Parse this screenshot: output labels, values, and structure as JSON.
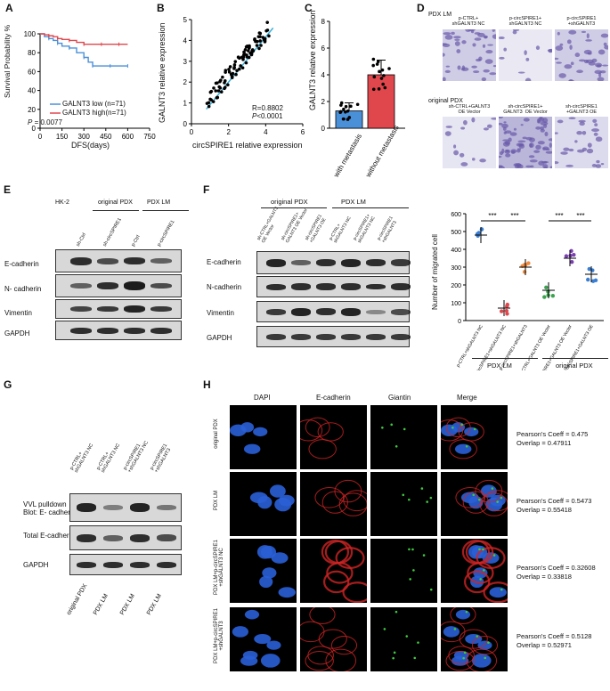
{
  "panels": {
    "A": "A",
    "B": "B",
    "C": "C",
    "D": "D",
    "E": "E",
    "F": "F",
    "G": "G",
    "H": "H"
  },
  "A": {
    "ylabel": "Survival Probability %",
    "xlabel": "DFS(days)",
    "yticks": [
      "0",
      "20",
      "40",
      "60",
      "80",
      "100"
    ],
    "xticks": [
      "0",
      "150",
      "300",
      "450",
      "600",
      "750"
    ],
    "legend": [
      "GALNT3 low (n=71)",
      "GALNT3 high(n=71)"
    ],
    "pvalue_label": "P",
    "pvalue": " = 0.0077",
    "colors": {
      "low": "#4a90d9",
      "high": "#e0474c"
    }
  },
  "B": {
    "ylabel": "GALNT3 relative expression",
    "xlabel": "circSPIRE1 relative expression",
    "yticks": [
      "0",
      "1",
      "2",
      "3",
      "4",
      "5"
    ],
    "xticks": [
      "0",
      "2",
      "4",
      "6"
    ],
    "r_text": "R=0.8802",
    "p_label": "P",
    "p_text": "<0.0001"
  },
  "C": {
    "ylabel": "GALNT3 relative expression",
    "yticks": [
      "0",
      "2",
      "4",
      "6",
      "8"
    ],
    "categories": [
      "with metastasis",
      "without metastasis"
    ],
    "colors": {
      "with": "#4a90d9",
      "without": "#e0474c"
    }
  },
  "D": {
    "section1": "PDX LM",
    "row1": [
      "p-CTRL+\nshGALNT3 NC",
      "p-circSPIRE1+\nshGALNT3 NC",
      "p-circSPIRE1\n+shGALNT3"
    ],
    "section2": "original PDX",
    "row2": [
      "sh-CTRL+GALNT3\nOE Vector",
      "sh-circSPIRE1+\nGALNT3  OE Vector",
      "sh-circSPIRE1\n+GALNT3 OE"
    ]
  },
  "E": {
    "groups": [
      "HK-2",
      "original PDX",
      "PDX LM"
    ],
    "lanes": [
      "sh-Ctrl",
      "sh-circSPIRE1",
      "p-Ctrl",
      "p-circSPIRE1"
    ],
    "rows": [
      "E-cadherin",
      "N- cadherin",
      "Vimentin",
      "GAPDH"
    ]
  },
  "F": {
    "groups": [
      "original PDX",
      "PDX LM"
    ],
    "lanes": [
      "sh-CTRL+GALNT3\nOE Vector",
      "sh-circSPIRE1+\nGALNT3 OE Vector",
      "sh-circSPIRE1\n+GALNT3 OE",
      "p-CTRL+\nshGALNT3 NC",
      "p-circSPIRE1+\nshGALNT3 NC",
      "p-circSPIRE1\n+shGALNT3"
    ],
    "rows": [
      "E-cadherin",
      "N-cadherin",
      "Vimentin",
      "GAPDH"
    ],
    "chart": {
      "ylabel": "Number of migrated cell",
      "yticks": [
        "0",
        "100",
        "200",
        "300",
        "400",
        "500",
        "600"
      ],
      "sig": [
        "***",
        "***",
        "***",
        "***"
      ],
      "group_labels": [
        "PDX LM",
        "original PDX"
      ]
    }
  },
  "G": {
    "lanes": [
      "p-CTRL+\nshGALNT3 NC",
      "p-CTRL+\nshGALNT3 NC",
      "p-circSPIRE1\n+shGALNT3 NC",
      "p-circSPIRE1\n+shGALNT3"
    ],
    "rows": [
      "VVL pulldown\nBlot: E- cadherin",
      "Total E-cadherin",
      "GAPDH"
    ],
    "bottom": [
      "original PDX",
      "PDX LM",
      "PDX LM",
      "PDX LM"
    ]
  },
  "H": {
    "cols": [
      "DAPI",
      "E-cadherin",
      "Giantin",
      "Merge"
    ],
    "rows": [
      "original PDX",
      "PDX LM",
      "PDX LM+p-circSPIRE1\n+shGALNT3 NC",
      "PDX LM+p-circSPIRE1\n+shGALNT3"
    ],
    "stats": [
      {
        "pearson": "Pearson's Coeff = 0.475",
        "overlap": "Overlap = 0.47911"
      },
      {
        "pearson": "Pearson's Coeff = 0.5473",
        "overlap": "Overlap = 0.55418"
      },
      {
        "pearson": "Pearson's Coeff = 0.32608",
        "overlap": "Overlap = 0.33818"
      },
      {
        "pearson": "Pearson's Coeff = 0.5128",
        "overlap": "Overlap = 0.52971"
      }
    ]
  },
  "chart_data": [
    {
      "type": "line",
      "xlabel": "DFS(days)",
      "ylabel": "Survival Probability %",
      "xlim": [
        0,
        750
      ],
      "ylim": [
        0,
        100
      ],
      "series": [
        {
          "name": "GALNT3 low (n=71)",
          "x": [
            0,
            30,
            60,
            90,
            120,
            150,
            200,
            250,
            300,
            330,
            360,
            420,
            480,
            540,
            600
          ],
          "values": [
            100,
            97,
            95,
            93,
            90,
            87,
            85,
            80,
            75,
            70,
            66,
            66,
            66,
            66,
            66
          ]
        },
        {
          "name": "GALNT3 high(n=71)",
          "x": [
            0,
            30,
            60,
            90,
            120,
            150,
            200,
            250,
            300,
            360,
            420,
            480,
            540,
            600
          ],
          "values": [
            100,
            99,
            98,
            97,
            95,
            94,
            93,
            91,
            89,
            89,
            89,
            89,
            89,
            89
          ]
        }
      ],
      "annotation": "P = 0.0077"
    },
    {
      "type": "scatter",
      "xlabel": "circSPIRE1 relative expression",
      "ylabel": "GALNT3 relative expression",
      "xlim": [
        0,
        6
      ],
      "ylim": [
        0,
        5
      ],
      "annotation": [
        "R=0.8802",
        "P<0.0001"
      ]
    },
    {
      "type": "bar",
      "ylabel": "GALNT3 relative expression",
      "categories": [
        "with metastasis",
        "without metastasis"
      ],
      "values": [
        1.3,
        4.0
      ],
      "ylim": [
        0,
        8
      ]
    },
    {
      "type": "scatter",
      "ylabel": "Number of migrated cell",
      "ylim": [
        0,
        600
      ],
      "categories": [
        "p-CTRL+shGALNT3 NC",
        "p-circSPIRE1+shGALNT3 NC",
        "p-circSPIRE1+shGALNT3",
        "sh-CTRL+GALNT3 OE Vector",
        "sh-circSPIRE1+GALNT3 OE Vector",
        "sh-circSPIRE1+GALNT3 OE"
      ],
      "values": [
        480,
        70,
        300,
        170,
        350,
        260
      ]
    }
  ]
}
